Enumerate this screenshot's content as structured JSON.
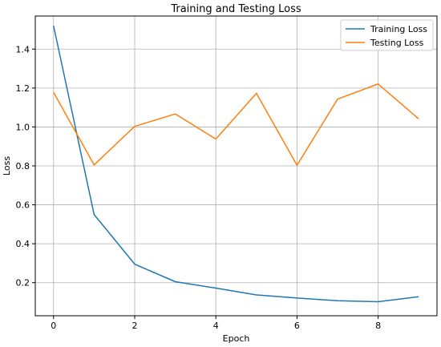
{
  "chart_data": {
    "type": "line",
    "title": "Training and Testing Loss",
    "xlabel": "Epoch",
    "ylabel": "Loss",
    "x": [
      0,
      1,
      2,
      3,
      4,
      5,
      6,
      7,
      8,
      9
    ],
    "xlim": [
      -0.45,
      9.45
    ],
    "ylim": [
      0.03,
      1.57
    ],
    "xticks": [
      0,
      2,
      4,
      6,
      8
    ],
    "yticks": [
      0.2,
      0.4,
      0.6,
      0.8,
      1.0,
      1.2,
      1.4
    ],
    "xtick_labels": [
      "0",
      "2",
      "4",
      "6",
      "8"
    ],
    "ytick_labels": [
      "0.2",
      "0.4",
      "0.6",
      "0.8",
      "1.0",
      "1.2",
      "1.4"
    ],
    "grid": true,
    "legend_position": "top-right",
    "series": [
      {
        "name": "Training Loss",
        "color": "#1f77b4",
        "values": [
          1.52,
          0.55,
          0.295,
          0.205,
          0.172,
          0.137,
          0.121,
          0.107,
          0.102,
          0.128
        ]
      },
      {
        "name": "Testing Loss",
        "color": "#ff7f0e",
        "values": [
          1.178,
          0.805,
          1.003,
          1.067,
          0.938,
          1.173,
          0.803,
          1.143,
          1.221,
          1.041
        ]
      }
    ]
  }
}
